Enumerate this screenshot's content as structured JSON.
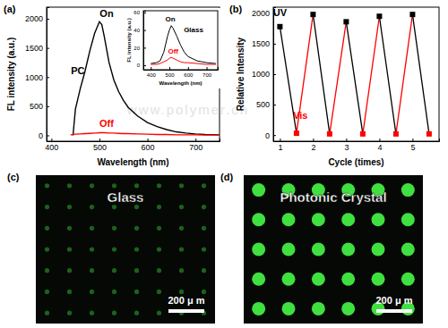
{
  "chart_data": [
    {
      "type": "line",
      "panel": "(a)",
      "x_label": "Wavelength (nm)",
      "y_label": "FL intensity (a.u.)",
      "x": [
        440,
        445,
        450,
        460,
        470,
        480,
        490,
        495,
        500,
        505,
        510,
        520,
        530,
        540,
        550,
        560,
        580,
        600,
        620,
        640,
        660,
        680,
        700,
        720,
        750
      ],
      "series": [
        {
          "color": "#000000",
          "marker": "none",
          "values": [
            null,
            0,
            450,
            800,
            1100,
            1450,
            1750,
            1850,
            1950,
            1900,
            1700,
            1250,
            950,
            750,
            600,
            480,
            330,
            220,
            150,
            100,
            60,
            40,
            25,
            15,
            10
          ]
        },
        {
          "color": "#ff0000",
          "marker": "none",
          "values": [
            10,
            15,
            20,
            25,
            30,
            35,
            40,
            40,
            45,
            45,
            45,
            40,
            40,
            35,
            30,
            30,
            25,
            20,
            15,
            15,
            10,
            10,
            10,
            5,
            5
          ]
        }
      ],
      "xlim": [
        390,
        750
      ],
      "xticks": [
        400,
        500,
        600,
        700
      ],
      "ylim": [
        -100,
        2200
      ],
      "yticks": [
        0,
        500,
        1000,
        1500,
        2000
      ],
      "annotations": [
        {
          "text": "On",
          "x": 515,
          "y": 2030,
          "color": "#000000"
        },
        {
          "text": "PC",
          "x": 455,
          "y": 1050,
          "color": "#000000"
        },
        {
          "text": "Off",
          "x": 515,
          "y": 150,
          "color": "#ff0000"
        }
      ]
    },
    {
      "type": "line",
      "x_label": "Wavelength (nm)",
      "y_label": "FL intensity (a.u.)",
      "x": [
        400,
        430,
        450,
        470,
        490,
        500,
        510,
        520,
        540,
        560,
        580,
        600,
        650,
        700,
        750
      ],
      "series": [
        {
          "color": "#000000",
          "marker": "none",
          "values": [
            2,
            3,
            5,
            15,
            33,
            40,
            45,
            42,
            33,
            23,
            15,
            10,
            5,
            3,
            2
          ]
        },
        {
          "color": "#ff0000",
          "marker": "none",
          "values": [
            1,
            1,
            2,
            4,
            6,
            8,
            9,
            8,
            6,
            4,
            3,
            3,
            2,
            1,
            1
          ]
        }
      ],
      "xlim": [
        360,
        760
      ],
      "xticks": [
        400,
        500,
        600,
        700
      ],
      "ylim": [
        -5,
        62
      ],
      "yticks": [
        0,
        20,
        40,
        60
      ],
      "annotations": [
        {
          "text": "On",
          "x": 505,
          "y": 50,
          "color": "#000000"
        },
        {
          "text": "Glass",
          "x": 630,
          "y": 38,
          "color": "#000000"
        },
        {
          "text": "Off",
          "x": 520,
          "y": 13,
          "color": "#ff0000"
        }
      ]
    },
    {
      "type": "line",
      "panel": "(b)",
      "x_label": "Cycle (times)",
      "y_label": "Relative Intensity",
      "series": [
        {
          "marker": "square",
          "x": [
            1,
            1.5,
            2,
            2.5,
            3,
            3.5,
            4,
            4.5,
            5,
            5.5
          ],
          "values": [
            1780,
            30,
            1980,
            20,
            1860,
            20,
            1950,
            20,
            1980,
            20
          ],
          "colors": [
            "#000000",
            "#ff0000",
            "#000000",
            "#ff0000",
            "#000000",
            "#ff0000",
            "#000000",
            "#ff0000",
            "#000000",
            "#ff0000"
          ]
        }
      ],
      "xlim": [
        0.8,
        5.8
      ],
      "xticks": [
        1,
        2,
        3,
        4,
        5
      ],
      "ylim": [
        -100,
        2100
      ],
      "yticks": [
        0,
        500,
        1000,
        1500,
        2000
      ],
      "annotations": [
        {
          "text": "UV",
          "x": 1.0,
          "y": 1960,
          "color": "#000000"
        },
        {
          "text": "Vis",
          "x": 1.62,
          "y": 260,
          "color": "#ff0000"
        }
      ]
    }
  ],
  "images": [
    {
      "panel": "(c)",
      "label": "Glass",
      "scale_bar": "200 μ m",
      "rows": 7,
      "columns": 8,
      "dot_color": "#1e6e1e"
    },
    {
      "panel": "(d)",
      "label": "Photonic Crystal",
      "scale_bar": "200 μ m",
      "rows": 5,
      "columns": 6,
      "dot_color": "#3fe03f"
    }
  ],
  "watermark": "www.polymer.cn"
}
